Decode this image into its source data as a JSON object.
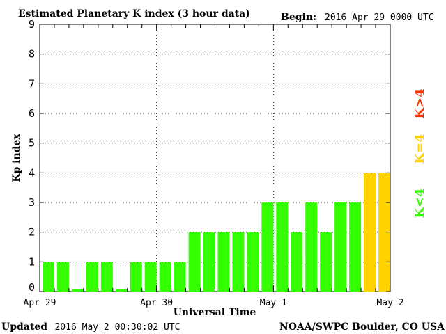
{
  "chart_data": {
    "type": "bar",
    "title": "Estimated Planetary K index (3 hour data)",
    "begin_label": "Begin:",
    "begin_value": "2016 Apr 29 0000 UTC",
    "xlabel": "Universal Time",
    "ylabel": "Kp index",
    "ylim": [
      0,
      9
    ],
    "yticks": [
      "0",
      "1",
      "2",
      "3",
      "4",
      "5",
      "6",
      "7",
      "8",
      "9"
    ],
    "xticks": [
      "Apr 29",
      "Apr 30",
      "May 1",
      "May 2"
    ],
    "grid": true,
    "values": [
      1,
      1,
      0.07,
      1,
      1,
      0.07,
      1,
      1,
      1,
      1,
      2,
      2,
      2,
      2,
      2,
      3,
      3,
      2,
      3,
      2,
      3,
      3,
      4,
      4
    ],
    "legend": [
      {
        "label": "K<4",
        "color": "#33ff00"
      },
      {
        "label": "K=4",
        "color": "#ffd200"
      },
      {
        "label": "K>4",
        "color": "#ff3300"
      }
    ],
    "colors": {
      "low": "#33ff00",
      "moderate": "#ffd200",
      "high": "#ff3300"
    }
  },
  "footer": {
    "updated_label": "Updated",
    "updated_value": "2016 May  2 00:30:02 UTC",
    "source": "NOAA/SWPC Boulder, CO USA"
  }
}
